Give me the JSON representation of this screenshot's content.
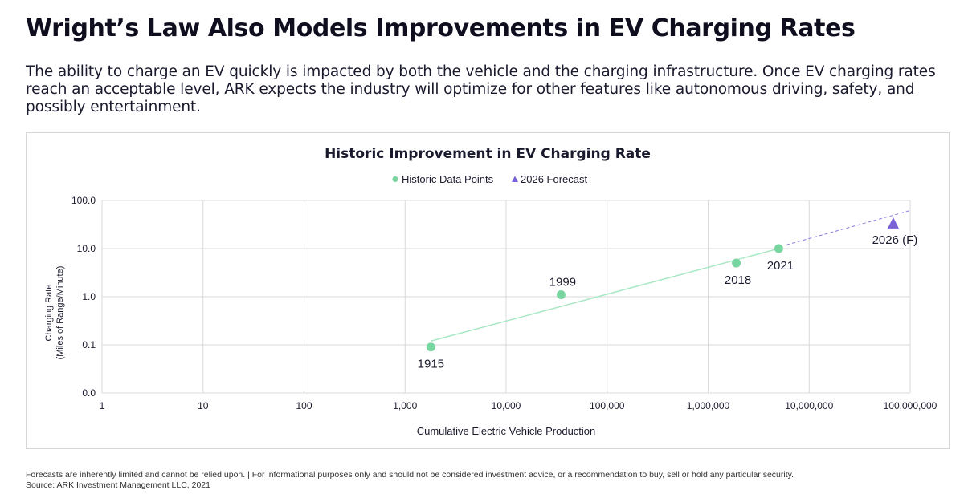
{
  "header": {
    "title": "Wright’s Law Also Models Improvements in EV Charging Rates",
    "subtitle": "The ability to charge an EV quickly is impacted by both the vehicle and the charging infrastructure. Once EV charging rates reach an acceptable level, ARK expects the industry will optimize for other features like autonomous driving, safety, and possibly entertainment."
  },
  "footer": {
    "disclaimer": "Forecasts are inherently limited and cannot be relied upon. | For informational purposes only and should not be considered investment advice, or a recommendation to buy, sell or hold any particular security.",
    "source": "Source: ARK Investment Management LLC, 2021"
  },
  "colors": {
    "historic": "#7ad6a0",
    "forecast": "#7b61d8",
    "trendline": "#a8e8c4",
    "forecast_line": "#8c7ae0",
    "grid": "#d9d9d9",
    "text": "#1a1a2e"
  },
  "chart_data": {
    "type": "scatter",
    "title": "Historic Improvement in EV Charging Rate",
    "xlabel": "Cumulative Electric Vehicle Production",
    "ylabel": "Charging Rate",
    "ylabel_sub": "(Miles of Range/Minute)",
    "x_scale": "log",
    "y_scale": "log",
    "xlim": [
      1,
      100000000
    ],
    "ylim": [
      0.01,
      100
    ],
    "x_ticks": [
      1,
      10,
      100,
      1000,
      10000,
      100000,
      1000000,
      10000000,
      100000000
    ],
    "x_tick_labels": [
      "1",
      "10",
      "100",
      "1,000",
      "10,000",
      "100,000",
      "1,000,000",
      "10,000,000",
      "100,000,000"
    ],
    "y_ticks": [
      0.01,
      0.1,
      1,
      10,
      100
    ],
    "y_tick_labels": [
      "0.0",
      "0.1",
      "1.0",
      "10.0",
      "100.0"
    ],
    "legend": [
      {
        "name": "Historic Data Points",
        "marker": "circle"
      },
      {
        "name": "2026 Forecast",
        "marker": "triangle"
      }
    ],
    "series": [
      {
        "name": "Historic Data Points",
        "marker": "circle",
        "points": [
          {
            "x": 1800,
            "y": 0.09,
            "label": "1915"
          },
          {
            "x": 35000,
            "y": 1.1,
            "label": "1999"
          },
          {
            "x": 1900000,
            "y": 5,
            "label": "2018"
          },
          {
            "x": 5000000,
            "y": 10,
            "label": "2021"
          }
        ]
      },
      {
        "name": "2026 Forecast",
        "marker": "triangle",
        "points": [
          {
            "x": 68000000,
            "y": 33,
            "label": "2026 (F)"
          }
        ]
      }
    ],
    "trendline": {
      "x": [
        1800,
        5000000
      ],
      "y": [
        0.12,
        10
      ]
    },
    "forecast_line": {
      "x": [
        6000000,
        100000000
      ],
      "y": [
        12,
        62
      ]
    }
  }
}
